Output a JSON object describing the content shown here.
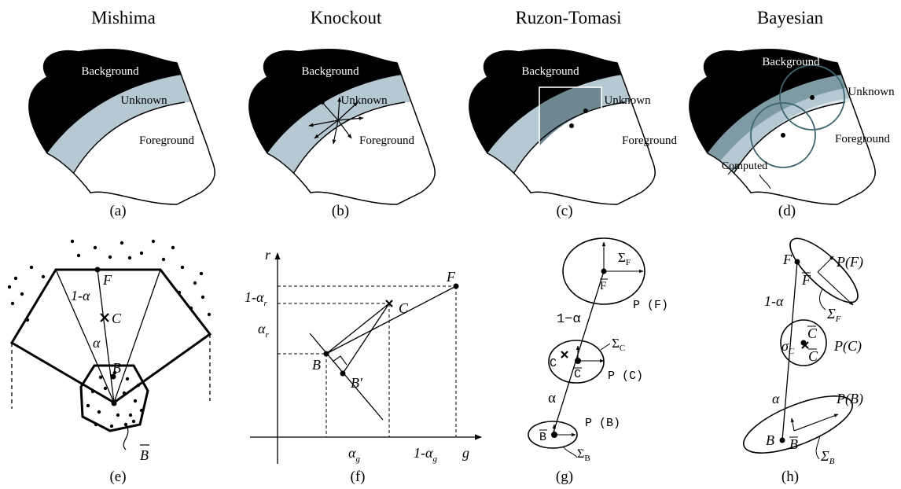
{
  "titles": {
    "a": "Mishima",
    "b": "Knockout",
    "c": "Ruzon-Tomasi",
    "d": "Bayesian"
  },
  "captions": {
    "a": "(a)",
    "b": "(b)",
    "c": "(c)",
    "d": "(d)",
    "e": "(e)",
    "f": "(f)",
    "g": "(g)",
    "h": "(h)"
  },
  "regions": {
    "background": "Background",
    "unknown": "Unknown",
    "foreground": "Foreground",
    "computed": "Computed"
  },
  "panel_e": {
    "f_label": "F",
    "one_minus_alpha": "1-α",
    "c_label": "C",
    "alpha": "α",
    "b_label": "B",
    "bbar_label": "B"
  },
  "panel_f": {
    "r_axis": "r",
    "g_axis": "g",
    "one_minus_alpha_r": "1-α",
    "alpha_r": "α",
    "r_sub": "r",
    "alpha_g": "α",
    "one_minus_alpha_g": "1-α",
    "g_sub": "g",
    "f_label": "F",
    "c_label": "C",
    "b_label": "B",
    "bprime_label": "B′"
  },
  "panel_g": {
    "sigma": "Σ",
    "sub_f": "F",
    "sub_c": "C",
    "sub_b": "B",
    "fbar": "F",
    "pf": "P (F)",
    "one_minus_alpha": "1−α",
    "c_label": "C",
    "cbar": "C",
    "pc": "P (C)",
    "alpha": "α",
    "bbar": "B",
    "pb": "P (B)"
  },
  "panel_h": {
    "f_label": "F",
    "fbar": "F",
    "pf": "P(F)",
    "sigma": "Σ",
    "sub_f": "F",
    "one_minus_alpha": "1-α",
    "c_label": "C",
    "sigma_c": "σ",
    "sub_c": "C",
    "cbar": "C",
    "pc": "P(C)",
    "alpha": "α",
    "pb": "P(B)",
    "b_label": "B",
    "bbar": "B",
    "sub_b": "B"
  },
  "colors": {
    "background_region": "#000000",
    "unknown_region": "#b6c9d3",
    "foreground_region": "#ffffff",
    "knockout_inner": "#6f8791",
    "bayes_band": "#7e9aa3",
    "bayes_band_light": "#dfe8ec"
  }
}
